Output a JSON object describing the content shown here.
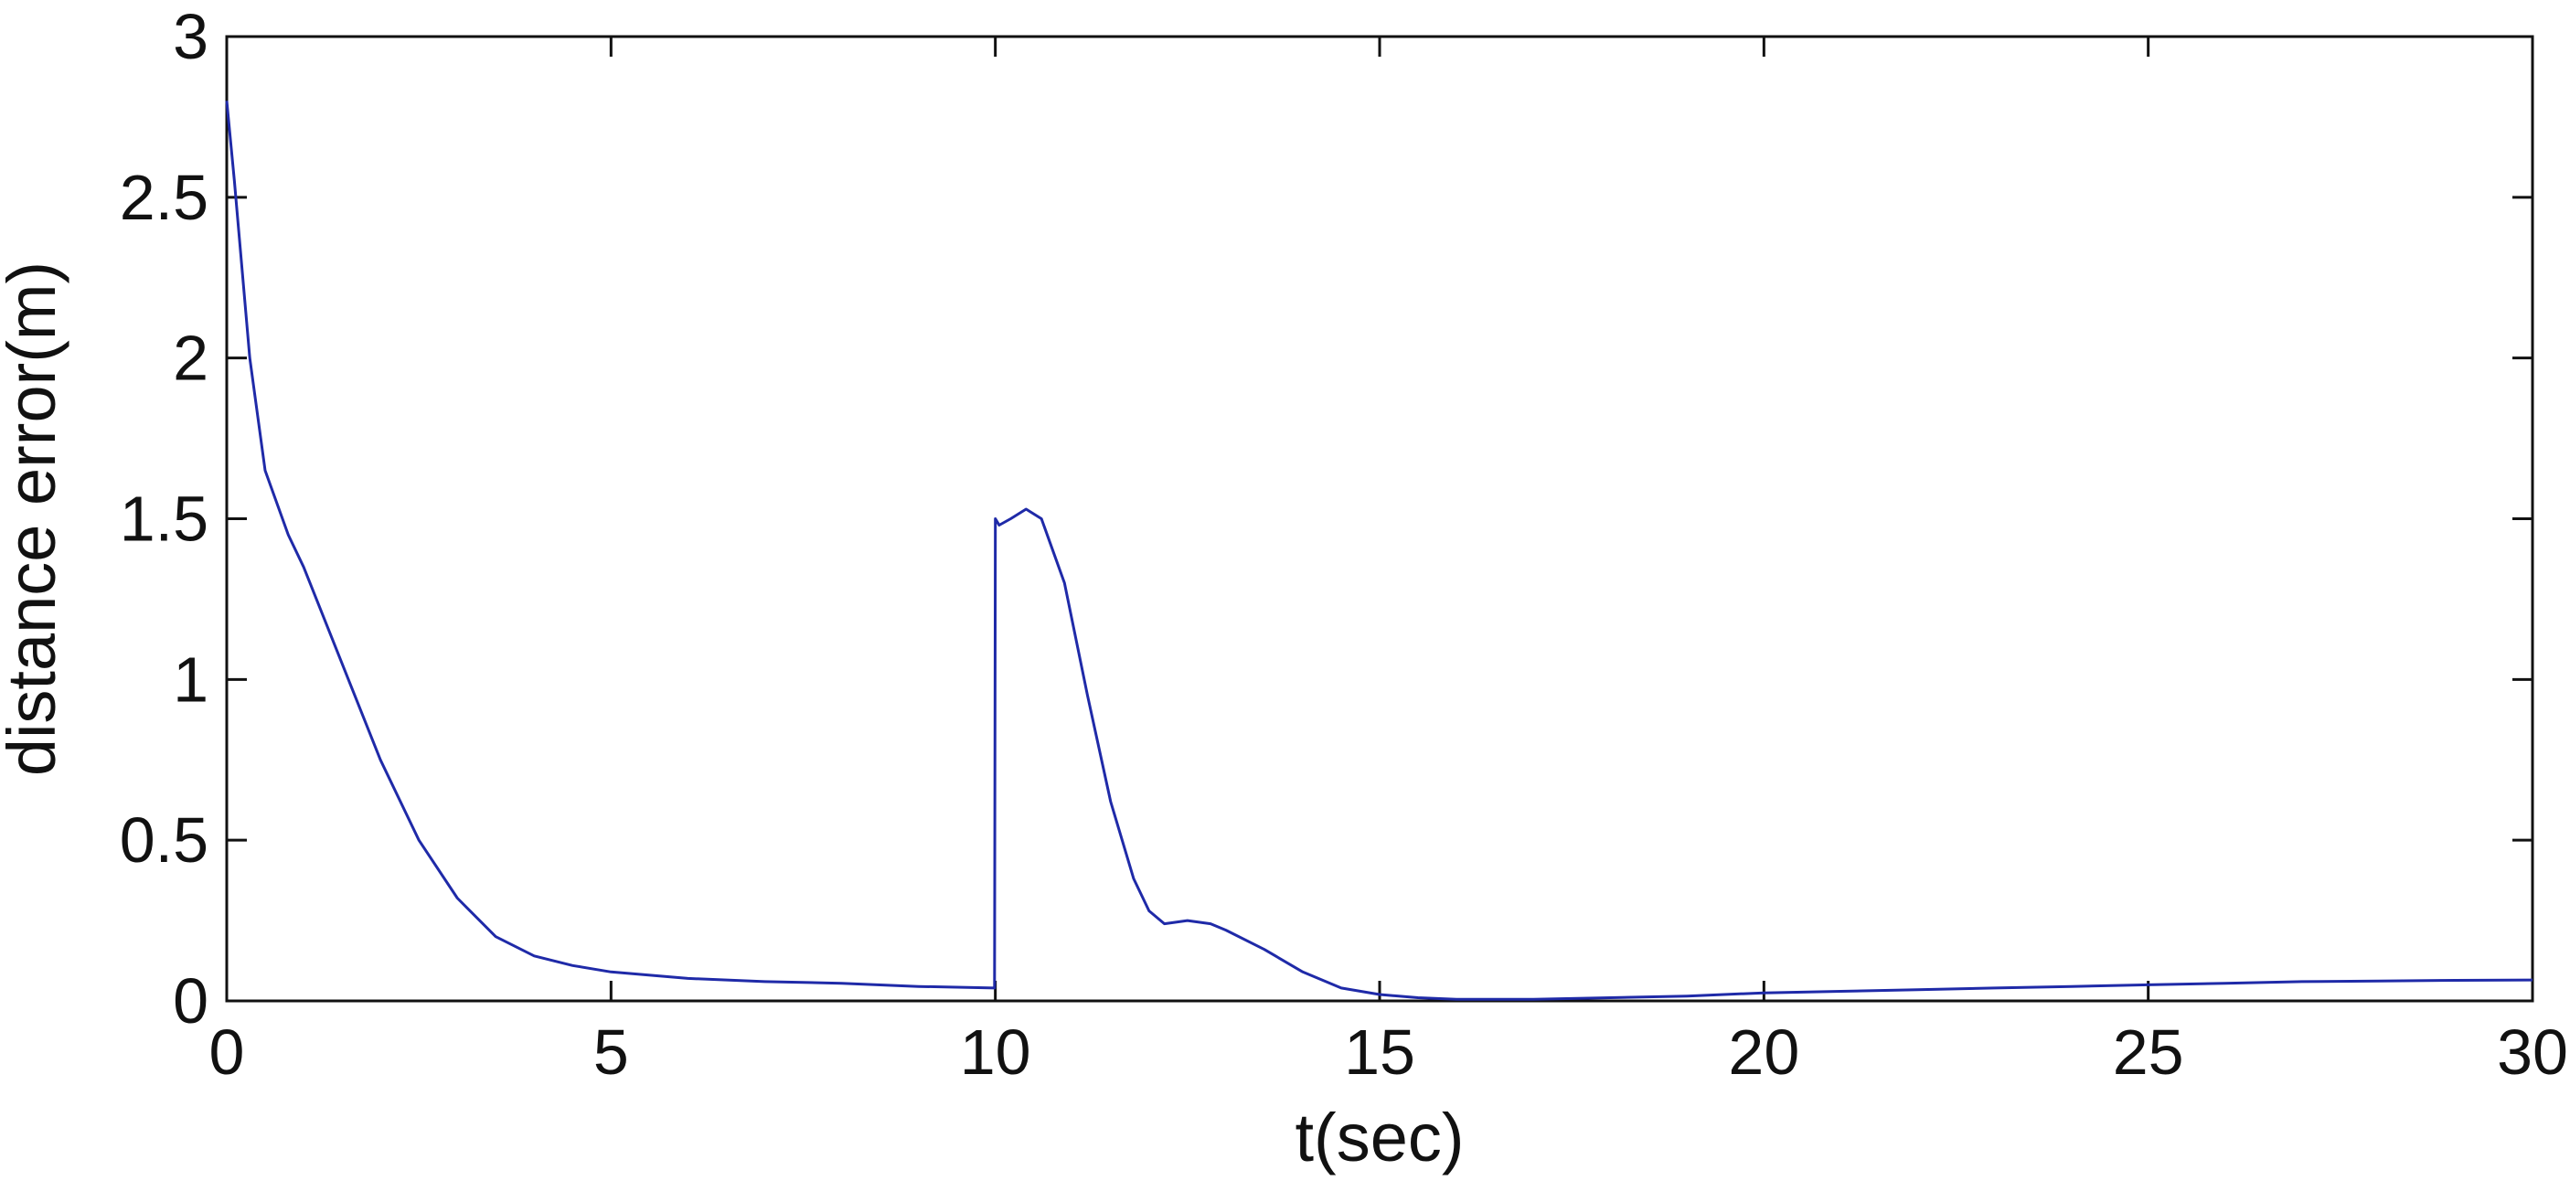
{
  "chart_data": {
    "type": "line",
    "title": "",
    "xlabel": "t(sec)",
    "ylabel": "distance error(m)",
    "xlim": [
      0,
      30
    ],
    "ylim": [
      0,
      3
    ],
    "xticks": [
      0,
      5,
      10,
      15,
      20,
      25,
      30
    ],
    "yticks": [
      0,
      0.5,
      1,
      1.5,
      2,
      2.5,
      3
    ],
    "xtick_labels": [
      "0",
      "5",
      "10",
      "15",
      "20",
      "25",
      "30"
    ],
    "ytick_labels": [
      "0",
      "0.5",
      "1",
      "1.5",
      "2",
      "2.5",
      "3"
    ],
    "grid": false,
    "legend": "none",
    "series": [
      {
        "color": "#1f2aa8",
        "x": [
          0,
          0.1,
          0.3,
          0.5,
          0.8,
          1.0,
          1.5,
          2.0,
          2.5,
          3.0,
          3.5,
          4.0,
          4.5,
          5.0,
          6.0,
          7.0,
          8.0,
          9.0,
          9.99,
          10.0,
          10.05,
          10.2,
          10.4,
          10.6,
          10.9,
          11.2,
          11.5,
          11.8,
          12.0,
          12.2,
          12.5,
          12.8,
          13.0,
          13.5,
          14.0,
          14.5,
          15.0,
          15.5,
          16.0,
          16.5,
          17.0,
          18.0,
          19.0,
          20.0,
          21.0,
          22.0,
          23.0,
          24.0,
          25.0,
          26.0,
          27.0,
          28.0,
          29.0,
          30.0
        ],
        "y": [
          2.8,
          2.55,
          2.0,
          1.65,
          1.45,
          1.35,
          1.05,
          0.75,
          0.5,
          0.32,
          0.2,
          0.14,
          0.11,
          0.09,
          0.07,
          0.06,
          0.055,
          0.045,
          0.04,
          1.5,
          1.48,
          1.5,
          1.53,
          1.5,
          1.3,
          0.95,
          0.62,
          0.38,
          0.28,
          0.24,
          0.25,
          0.24,
          0.22,
          0.16,
          0.09,
          0.04,
          0.02,
          0.01,
          0.005,
          0.005,
          0.005,
          0.01,
          0.015,
          0.025,
          0.03,
          0.035,
          0.04,
          0.045,
          0.05,
          0.055,
          0.06,
          0.062,
          0.064,
          0.065
        ]
      }
    ]
  }
}
